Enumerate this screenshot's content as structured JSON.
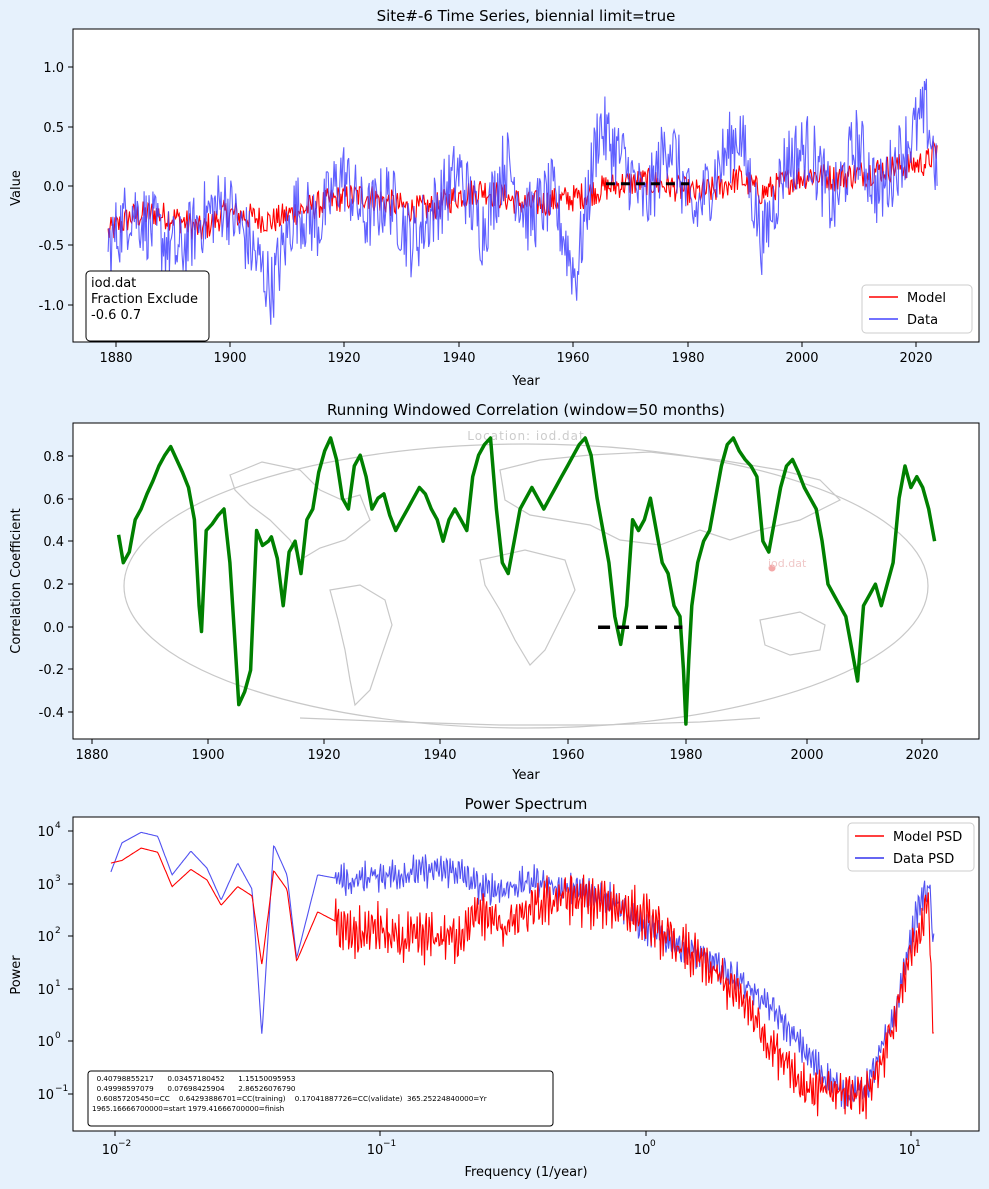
{
  "figure": {
    "background": "#e6f1fc"
  },
  "panels": {
    "timeseries": {
      "title": "Site#-6 Time Series, biennial limit=true",
      "xlabel": "Year",
      "ylabel": "Value",
      "xticks": [
        "1880",
        "1900",
        "1920",
        "1940",
        "1960",
        "1980",
        "2000",
        "2020"
      ],
      "yticks": [
        "-1.0",
        "-0.5",
        "0.0",
        "0.5",
        "1.0"
      ],
      "info_lines": [
        "iod.dat",
        "Fraction Exclude",
        "-0.6 0.7"
      ],
      "legend": [
        "Model",
        "Data"
      ]
    },
    "correlation": {
      "title": "Running Windowed Correlation (window=50 months)",
      "xlabel": "Year",
      "ylabel": "Correlation Coefficient",
      "xticks": [
        "1880",
        "1900",
        "1920",
        "1940",
        "1960",
        "1980",
        "2000",
        "2020"
      ],
      "yticks": [
        "-0.4",
        "-0.2",
        "0.0",
        "0.2",
        "0.4",
        "0.6",
        "0.8"
      ],
      "watermark": "Location: iod.dat",
      "marker_label": "iod.dat"
    },
    "spectrum": {
      "title": "Power Spectrum",
      "xlabel": "Frequency (1/year)",
      "ylabel": "Power",
      "xtick_bases": [
        "10",
        "10",
        "10",
        "10"
      ],
      "xtick_exps": [
        "−2",
        "−1",
        "0",
        "1"
      ],
      "ytick_bases": [
        "10",
        "10",
        "10",
        "10",
        "10",
        "10"
      ],
      "ytick_exps": [
        "−1",
        "0",
        "1",
        "2",
        "3",
        "4"
      ],
      "legend": [
        "Model PSD",
        "Data PSD"
      ],
      "stats_lines": [
        "  0.40798855217      0.03457180452      1.15150095953",
        "  0.49998597079      0.07698425904      2.86526076790",
        "  0.60857205450=CC    0.64293886701=CC(training)    0.17041887726=CC(validate)  365.25224840000=Yr",
        "1965.16666700000=start 1979.41666700000=finish"
      ]
    }
  },
  "chart_data": [
    {
      "type": "line",
      "title": "Site#-6 Time Series, biennial limit=true",
      "xlabel": "Year",
      "ylabel": "Value",
      "xlim": [
        1874,
        2029
      ],
      "ylim": [
        -1.35,
        1.32
      ],
      "grid": false,
      "legend_position": "lower right",
      "validation_interval": [
        1965.17,
        1979.42
      ],
      "series": [
        {
          "name": "Model",
          "color": "#ff0000",
          "x": [
            1880,
            1884,
            1888,
            1892,
            1896,
            1900,
            1904,
            1908,
            1912,
            1916,
            1920,
            1924,
            1928,
            1932,
            1936,
            1940,
            1944,
            1948,
            1952,
            1956,
            1960,
            1964,
            1968,
            1972,
            1976,
            1980,
            1984,
            1988,
            1992,
            1996,
            2000,
            2004,
            2008,
            2012,
            2016,
            2020,
            2022
          ],
          "y": [
            -0.42,
            -0.28,
            -0.25,
            -0.3,
            -0.4,
            -0.25,
            -0.28,
            -0.32,
            -0.24,
            -0.18,
            -0.12,
            -0.1,
            -0.16,
            -0.22,
            -0.2,
            -0.1,
            -0.05,
            -0.12,
            -0.18,
            -0.15,
            -0.12,
            -0.05,
            0.0,
            0.02,
            -0.02,
            -0.08,
            -0.05,
            0.05,
            -0.08,
            0.02,
            0.08,
            0.05,
            0.08,
            0.12,
            0.15,
            0.18,
            0.3
          ]
        },
        {
          "name": "Data",
          "color": "#4444ff",
          "x": [
            1880,
            1884,
            1888,
            1892,
            1896,
            1900,
            1904,
            1908,
            1912,
            1916,
            1920,
            1924,
            1928,
            1932,
            1936,
            1940,
            1944,
            1948,
            1952,
            1956,
            1960,
            1964,
            1968,
            1972,
            1976,
            1980,
            1984,
            1988,
            1992,
            1996,
            2000,
            2004,
            2008,
            2012,
            2016,
            2020,
            2022
          ],
          "y": [
            -0.55,
            -0.2,
            -0.4,
            -0.6,
            -0.3,
            -0.15,
            -0.5,
            -0.9,
            -0.2,
            -0.35,
            0.1,
            -0.3,
            -0.1,
            -0.5,
            -0.2,
            0.1,
            -0.4,
            0.2,
            -0.3,
            -0.1,
            -0.8,
            0.5,
            0.2,
            -0.2,
            0.4,
            -0.3,
            0.1,
            0.45,
            -0.5,
            0.2,
            0.3,
            -0.2,
            0.35,
            -0.1,
            0.3,
            0.6,
            0.05
          ]
        }
      ],
      "annotations": [
        "iod.dat",
        "Fraction Exclude",
        "-0.6 0.7"
      ]
    },
    {
      "type": "line",
      "title": "Running Windowed Correlation (window=50 months)",
      "xlabel": "Year",
      "ylabel": "Correlation Coefficient",
      "xlim": [
        1876.5,
        2029.5
      ],
      "ylim": [
        -0.52,
        0.95
      ],
      "grid": false,
      "validation_interval": [
        1965.17,
        1979.42
      ],
      "series": [
        {
          "name": "",
          "color": "#008000",
          "x": [
            1884.2,
            1885,
            1886,
            1887,
            1888,
            1889,
            1890,
            1891,
            1892,
            1893,
            1894,
            1895,
            1896,
            1897,
            1897.8,
            1898.2,
            1899,
            1900,
            1901,
            1902,
            1903,
            1903.8,
            1904.5,
            1905.5,
            1906.5,
            1907.5,
            1908.5,
            1909.5,
            1910,
            1911,
            1912,
            1913,
            1914,
            1915,
            1916,
            1917,
            1918,
            1919,
            1920,
            1921,
            1922,
            1923,
            1924,
            1925,
            1926,
            1927,
            1928,
            1929,
            1930,
            1931,
            1932,
            1933,
            1934,
            1935,
            1936,
            1937,
            1938,
            1939,
            1940,
            1941,
            1942,
            1943,
            1944,
            1945,
            1946,
            1947,
            1948,
            1949,
            1950,
            1951,
            1952,
            1953,
            1954,
            1955,
            1956,
            1957,
            1958,
            1959,
            1960,
            1961,
            1962,
            1963,
            1964,
            1965,
            1966,
            1967,
            1968,
            1969,
            1970,
            1971,
            1972,
            1973,
            1974,
            1975,
            1976,
            1977,
            1978,
            1979,
            1979.6,
            1980,
            1980.5,
            1981,
            1982,
            1983,
            1984,
            1985,
            1986,
            1987,
            1988,
            1989,
            1990,
            1991,
            1992,
            1993,
            1994,
            1995,
            1996,
            1997,
            1998,
            1999,
            2000,
            2001,
            2002,
            2003,
            2004,
            2005,
            2006,
            2007,
            2008,
            2009,
            2010,
            2011,
            2012,
            2013,
            2014,
            2015,
            2016,
            2017,
            2018,
            2019,
            2020,
            2021,
            2022
          ],
          "y": [
            0.43,
            0.3,
            0.35,
            0.5,
            0.55,
            0.62,
            0.68,
            0.75,
            0.8,
            0.84,
            0.78,
            0.72,
            0.65,
            0.5,
            0.1,
            -0.02,
            0.45,
            0.48,
            0.52,
            0.55,
            0.3,
            -0.05,
            -0.36,
            -0.3,
            -0.2,
            0.45,
            0.38,
            0.4,
            0.42,
            0.32,
            0.1,
            0.35,
            0.4,
            0.25,
            0.5,
            0.55,
            0.72,
            0.82,
            0.88,
            0.78,
            0.6,
            0.55,
            0.75,
            0.8,
            0.7,
            0.55,
            0.6,
            0.62,
            0.52,
            0.45,
            0.5,
            0.55,
            0.6,
            0.65,
            0.62,
            0.55,
            0.5,
            0.4,
            0.5,
            0.55,
            0.5,
            0.45,
            0.7,
            0.8,
            0.85,
            0.88,
            0.55,
            0.3,
            0.25,
            0.4,
            0.55,
            0.6,
            0.65,
            0.6,
            0.55,
            0.6,
            0.65,
            0.7,
            0.75,
            0.8,
            0.85,
            0.88,
            0.8,
            0.6,
            0.45,
            0.3,
            0.05,
            -0.08,
            0.1,
            0.5,
            0.45,
            0.5,
            0.6,
            0.45,
            0.3,
            0.25,
            0.1,
            0.05,
            -0.2,
            -0.45,
            -0.15,
            0.1,
            0.3,
            0.4,
            0.45,
            0.6,
            0.75,
            0.85,
            0.88,
            0.82,
            0.78,
            0.75,
            0.7,
            0.4,
            0.35,
            0.5,
            0.65,
            0.75,
            0.78,
            0.72,
            0.65,
            0.6,
            0.55,
            0.4,
            0.2,
            0.15,
            0.1,
            0.05,
            -0.1,
            -0.25,
            0.1,
            0.15,
            0.2,
            0.1,
            0.2,
            0.3,
            0.6,
            0.75,
            0.65,
            0.7,
            0.65,
            0.55,
            0.4
          ]
        }
      ]
    },
    {
      "type": "line",
      "title": "Power Spectrum",
      "xlabel": "Frequency (1/year)",
      "ylabel": "Power",
      "xscale": "log",
      "yscale": "log",
      "xlim": [
        0.0072,
        18.5
      ],
      "ylim": [
        0.022,
        18500
      ],
      "grid": false,
      "legend_position": "upper right",
      "series": [
        {
          "name": "Model PSD",
          "color": "#ff0000",
          "x": [
            0.01,
            0.011,
            0.013,
            0.015,
            0.017,
            0.02,
            0.023,
            0.026,
            0.03,
            0.034,
            0.037,
            0.041,
            0.046,
            0.05,
            0.06,
            0.07,
            0.08,
            0.1,
            0.12,
            0.15,
            0.2,
            0.25,
            0.3,
            0.4,
            0.5,
            0.6,
            0.8,
            1.0,
            1.3,
            1.6,
            2.0,
            2.5,
            3.0,
            3.5,
            4.0,
            5.0,
            6.0,
            7.0,
            8.0,
            9.0,
            10.0,
            11.0,
            12.0,
            12.5
          ],
          "y": [
            2500,
            2800,
            4800,
            4000,
            900,
            1900,
            1200,
            400,
            900,
            600,
            30,
            1800,
            800,
            35,
            300,
            200,
            100,
            150,
            80,
            100,
            100,
            300,
            150,
            350,
            600,
            500,
            400,
            250,
            80,
            40,
            15,
            5,
            1,
            0.5,
            0.15,
            0.12,
            0.12,
            0.12,
            0.5,
            3,
            30,
            150,
            400,
            0.7
          ]
        },
        {
          "name": "Data PSD",
          "color": "#3333ee",
          "x": [
            0.01,
            0.011,
            0.013,
            0.015,
            0.017,
            0.02,
            0.023,
            0.026,
            0.03,
            0.034,
            0.037,
            0.041,
            0.046,
            0.05,
            0.06,
            0.07,
            0.08,
            0.1,
            0.12,
            0.15,
            0.2,
            0.25,
            0.3,
            0.4,
            0.5,
            0.6,
            0.8,
            1.0,
            1.3,
            1.6,
            2.0,
            2.5,
            3.0,
            3.5,
            4.0,
            5.0,
            6.0,
            7.0,
            8.0,
            9.0,
            10.0,
            11.0,
            12.0,
            12.5
          ],
          "y": [
            1700,
            6000,
            9500,
            8000,
            1500,
            4200,
            2000,
            500,
            2500,
            800,
            1.4,
            5500,
            1500,
            40,
            1500,
            1300,
            1100,
            1500,
            1500,
            1800,
            1800,
            800,
            800,
            1200,
            800,
            700,
            500,
            150,
            80,
            50,
            25,
            12,
            5,
            2,
            0.8,
            0.2,
            0.1,
            0.15,
            0.8,
            4,
            60,
            400,
            1000,
            60
          ]
        }
      ],
      "annotations": [
        "  0.40798855217      0.03457180452      1.15150095953",
        "  0.49998597079      0.07698425904      2.86526076790",
        "  0.60857205450=CC    0.64293886701=CC(training)    0.17041887726=CC(validate)  365.25224840000=Yr",
        "1965.16666700000=start 1979.41666700000=finish"
      ]
    }
  ]
}
